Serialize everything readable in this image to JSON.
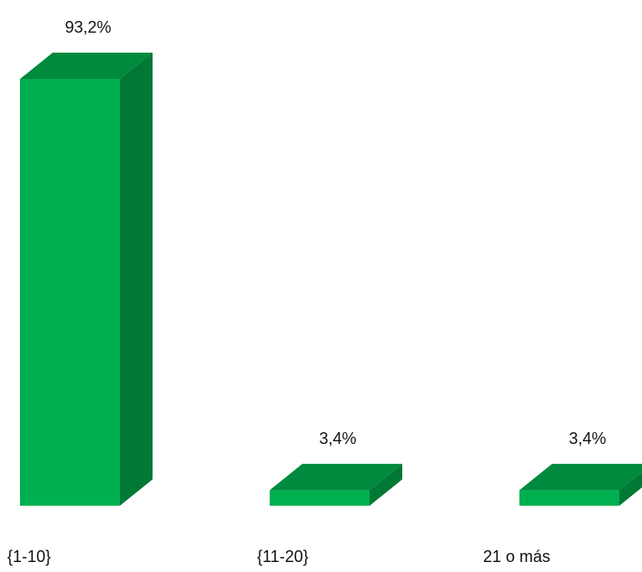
{
  "chart_data": {
    "type": "bar",
    "categories": [
      "{1-10}",
      "{11-20}",
      "21 o más"
    ],
    "values": [
      93.2,
      3.4,
      3.4
    ],
    "data_labels": [
      "93,2%",
      "3,4%",
      "3,4%"
    ],
    "unit": "%",
    "style": "3d-column",
    "grid": false,
    "legend": "none",
    "ylim": [
      0,
      93.2
    ]
  },
  "colors": {
    "front": "#00B050",
    "top": "#008A3E",
    "side": "#007934"
  }
}
